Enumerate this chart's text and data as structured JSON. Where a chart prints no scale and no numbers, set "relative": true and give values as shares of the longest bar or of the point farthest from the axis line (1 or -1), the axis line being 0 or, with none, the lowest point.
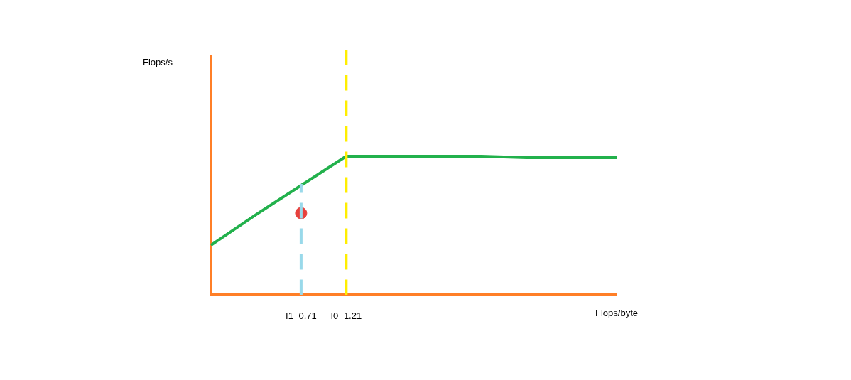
{
  "chart_data": {
    "type": "line",
    "relative": true,
    "xlabel": "Flops/byte",
    "annotations": [
      "Flops/s"
    ],
    "categories": [
      null,
      null,
      "I1=0.71",
      "I0=1.21",
      null,
      null,
      null,
      null,
      null,
      null
    ],
    "grid": false,
    "legend": false,
    "series": [
      {
        "type": "line",
        "color": "#22b14c",
        "values": [
          0.36,
          0.58,
          0.79,
          1,
          1,
          1,
          1,
          0.99,
          0.99,
          0.99
        ]
      },
      {
        "type": "scatter",
        "marker": "circle",
        "color": "#e8403c",
        "x": [
          "I1=0.71"
        ],
        "values": [
          0.59
        ]
      }
    ],
    "ref_lines": [
      {
        "axis": "x",
        "value": "I1=0.71",
        "color": "#99d9ea",
        "line_style": "dashed"
      },
      {
        "axis": "x",
        "value": "I0=1.21",
        "color": "#ffee00",
        "line_style": "dashed"
      }
    ]
  }
}
